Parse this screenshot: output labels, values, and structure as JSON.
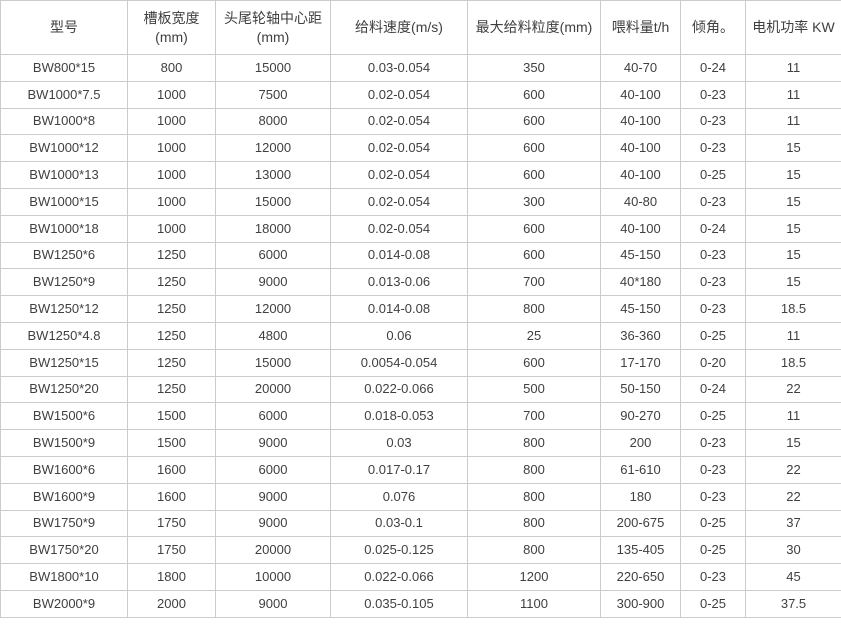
{
  "colors": {
    "border": "#cccccc",
    "text": "#404040",
    "background": "#ffffff"
  },
  "table": {
    "columns": [
      "型号",
      "槽板宽度(mm)",
      "头尾轮轴中心距 (mm)",
      "给料速度(m/s)",
      "最大给料粒度(mm)",
      "喂料量t/h",
      "倾角。",
      "电机功率 KW"
    ],
    "rows": [
      [
        "BW800*15",
        "800",
        "15000",
        "0.03-0.054",
        "350",
        "40-70",
        "0-24",
        "11"
      ],
      [
        "BW1000*7.5",
        "1000",
        "7500",
        "0.02-0.054",
        "600",
        "40-100",
        "0-23",
        "11"
      ],
      [
        "BW1000*8",
        "1000",
        "8000",
        "0.02-0.054",
        "600",
        "40-100",
        "0-23",
        "11"
      ],
      [
        "BW1000*12",
        "1000",
        "12000",
        "0.02-0.054",
        "600",
        "40-100",
        "0-23",
        "15"
      ],
      [
        "BW1000*13",
        "1000",
        "13000",
        "0.02-0.054",
        "600",
        "40-100",
        "0-25",
        "15"
      ],
      [
        "BW1000*15",
        "1000",
        "15000",
        "0.02-0.054",
        "300",
        "40-80",
        "0-23",
        "15"
      ],
      [
        "BW1000*18",
        "1000",
        "18000",
        "0.02-0.054",
        "600",
        "40-100",
        "0-24",
        "15"
      ],
      [
        "BW1250*6",
        "1250",
        "6000",
        "0.014-0.08",
        "600",
        "45-150",
        "0-23",
        "15"
      ],
      [
        "BW1250*9",
        "1250",
        "9000",
        "0.013-0.06",
        "700",
        "40*180",
        "0-23",
        "15"
      ],
      [
        "BW1250*12",
        "1250",
        "12000",
        "0.014-0.08",
        "800",
        "45-150",
        "0-23",
        "18.5"
      ],
      [
        "BW1250*4.8",
        "1250",
        "4800",
        "0.06",
        "25",
        "36-360",
        "0-25",
        "11"
      ],
      [
        "BW1250*15",
        "1250",
        "15000",
        "0.0054-0.054",
        "600",
        "17-170",
        "0-20",
        "18.5"
      ],
      [
        "BW1250*20",
        "1250",
        "20000",
        "0.022-0.066",
        "500",
        "50-150",
        "0-24",
        "22"
      ],
      [
        "BW1500*6",
        "1500",
        "6000",
        "0.018-0.053",
        "700",
        "90-270",
        "0-25",
        "11"
      ],
      [
        "BW1500*9",
        "1500",
        "9000",
        "0.03",
        "800",
        "200",
        "0-23",
        "15"
      ],
      [
        "BW1600*6",
        "1600",
        "6000",
        "0.017-0.17",
        "800",
        "61-610",
        "0-23",
        "22"
      ],
      [
        "BW1600*9",
        "1600",
        "9000",
        "0.076",
        "800",
        "180",
        "0-23",
        "22"
      ],
      [
        "BW1750*9",
        "1750",
        "9000",
        "0.03-0.1",
        "800",
        "200-675",
        "0-25",
        "37"
      ],
      [
        "BW1750*20",
        "1750",
        "20000",
        "0.025-0.125",
        "800",
        "135-405",
        "0-25",
        "30"
      ],
      [
        "BW1800*10",
        "1800",
        "10000",
        "0.022-0.066",
        "1200",
        "220-650",
        "0-23",
        "45"
      ],
      [
        "BW2000*9",
        "2000",
        "9000",
        "0.035-0.105",
        "1100",
        "300-900",
        "0-25",
        "37.5"
      ]
    ]
  }
}
